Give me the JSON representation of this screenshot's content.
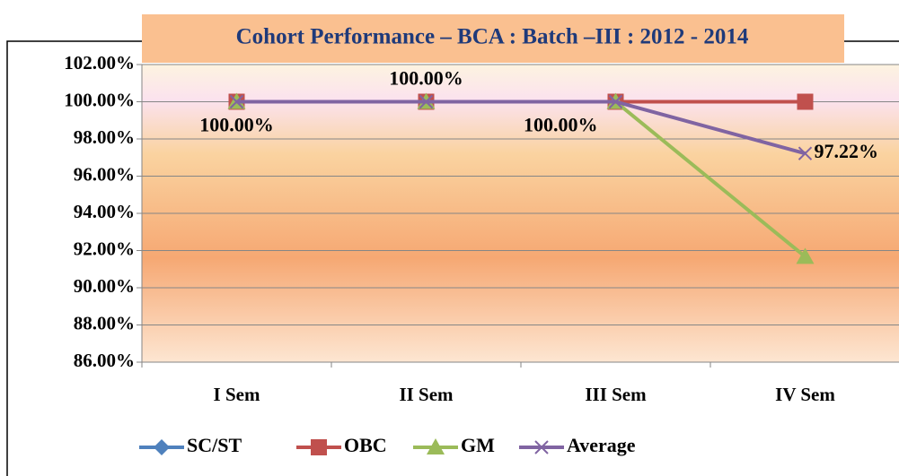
{
  "chart_data": {
    "type": "line",
    "title": "Cohort Performance – BCA : Batch –III : 2012 - 2014",
    "categories": [
      "I Sem",
      "II Sem",
      "III Sem",
      "IV Sem"
    ],
    "series": [
      {
        "name": "SC/ST",
        "color": "#4f81bd",
        "marker": "diamond",
        "values": [
          100,
          100,
          100,
          100
        ]
      },
      {
        "name": "OBC",
        "color": "#c0504d",
        "marker": "square",
        "values": [
          100,
          100,
          100,
          100
        ]
      },
      {
        "name": "GM",
        "color": "#9bbb59",
        "marker": "triangle",
        "values": [
          100,
          100,
          100,
          91.67
        ]
      },
      {
        "name": "Average",
        "color": "#8064a2",
        "marker": "x",
        "values": [
          100,
          100,
          100,
          97.22
        ],
        "value_labels": [
          "100.00%",
          "100.00%",
          "100.00%",
          "97.22%"
        ]
      }
    ],
    "ylim": [
      86,
      102
    ],
    "yticks": [
      {
        "value": 86,
        "label": "86.00%"
      },
      {
        "value": 88,
        "label": "88.00%"
      },
      {
        "value": 90,
        "label": "90.00%"
      },
      {
        "value": 92,
        "label": "92.00%"
      },
      {
        "value": 94,
        "label": "94.00%"
      },
      {
        "value": 96,
        "label": "96.00%"
      },
      {
        "value": 98,
        "label": "98.00%"
      },
      {
        "value": 100,
        "label": "100.00%"
      },
      {
        "value": 102,
        "label": "102.00%"
      }
    ],
    "grid": true,
    "legend": "bottom"
  }
}
